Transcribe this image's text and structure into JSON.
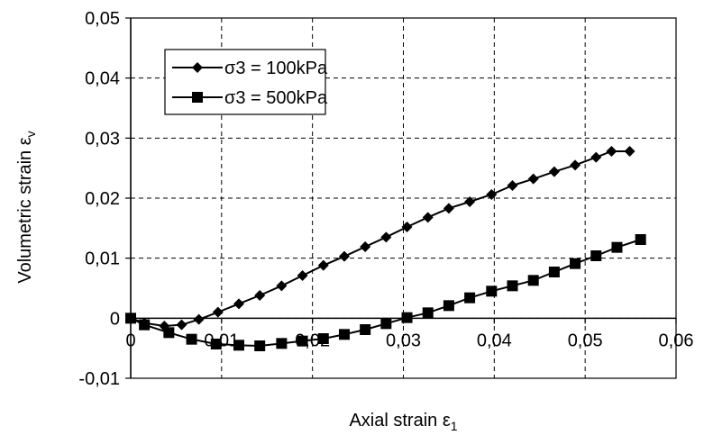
{
  "chart_data": {
    "type": "line",
    "xlabel": "Axial strain ε",
    "xlabel_sub": "1",
    "ylabel": "Volumetric strain ε",
    "ylabel_sub": "v",
    "xlim": [
      0,
      0.06
    ],
    "ylim": [
      -0.01,
      0.05
    ],
    "x_ticks": [
      "0",
      "0,01",
      "0,02",
      "0,03",
      "0,04",
      "0,05",
      "0,06"
    ],
    "y_ticks": [
      "-0,01",
      "0",
      "0,01",
      "0,02",
      "0,03",
      "0,04",
      "0,05"
    ],
    "grid": true,
    "legend_position": "top-left",
    "series": [
      {
        "name": "σ3 = 100kPa",
        "marker": "diamond",
        "color": "#000000",
        "x": [
          0,
          0.0015,
          0.0037,
          0.0056,
          0.0075,
          0.0096,
          0.0119,
          0.0142,
          0.0166,
          0.0189,
          0.0212,
          0.0235,
          0.0258,
          0.0281,
          0.0304,
          0.0327,
          0.035,
          0.0373,
          0.0397,
          0.042,
          0.0443,
          0.0466,
          0.0489,
          0.0512,
          0.0529,
          0.0549
        ],
        "y": [
          0,
          -0.0008,
          -0.0013,
          -0.0011,
          -0.0002,
          0.001,
          0.0024,
          0.0038,
          0.0054,
          0.0071,
          0.0088,
          0.0103,
          0.0119,
          0.0135,
          0.0152,
          0.0168,
          0.0183,
          0.0194,
          0.0206,
          0.0221,
          0.0232,
          0.0244,
          0.0255,
          0.0268,
          0.0278,
          0.0278
        ]
      },
      {
        "name": "σ3 = 500kPa",
        "marker": "square",
        "color": "#000000",
        "x": [
          0,
          0.0015,
          0.0042,
          0.0067,
          0.0094,
          0.0119,
          0.0142,
          0.0166,
          0.0189,
          0.0212,
          0.0235,
          0.0258,
          0.0281,
          0.0304,
          0.0327,
          0.035,
          0.0373,
          0.0397,
          0.042,
          0.0443,
          0.0466,
          0.0489,
          0.0512,
          0.0535,
          0.0561
        ],
        "y": [
          0,
          -0.0011,
          -0.0024,
          -0.0035,
          -0.0043,
          -0.0045,
          -0.0046,
          -0.0042,
          -0.0038,
          -0.0034,
          -0.0027,
          -0.0019,
          -0.0009,
          0.0001,
          0.0009,
          0.0021,
          0.0034,
          0.0045,
          0.0054,
          0.0063,
          0.0077,
          0.0091,
          0.0104,
          0.0118,
          0.0131
        ]
      }
    ]
  }
}
